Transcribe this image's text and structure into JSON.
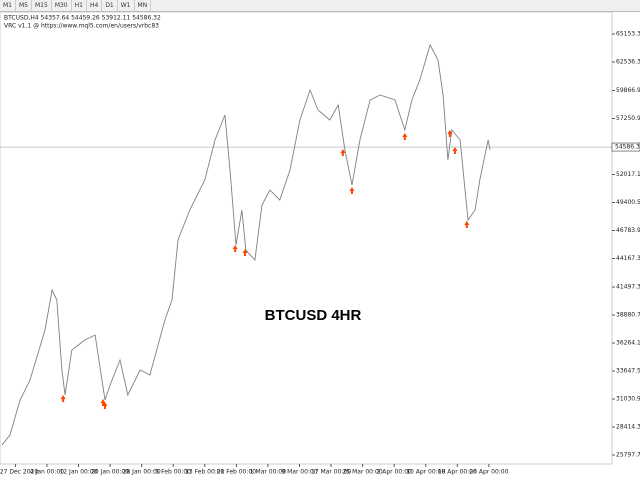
{
  "toolbar": {
    "tabs": [
      "M1",
      "M5",
      "M15",
      "M30",
      "H1",
      "H4",
      "D1",
      "W1",
      "MN"
    ]
  },
  "chart_data": {
    "type": "line",
    "info": "BTCUSD,H4  54357.64 54459.26 53912.11 54586.32",
    "indicator": "VRC v1.1 @ https://www.mql5.com/en/users/vrbc83",
    "annotation": "BTCUSD 4HR",
    "current_price": 54586.32,
    "xlim": [
      -3.9,
      151.2
    ],
    "ylim": [
      25143,
      67023
    ],
    "xticks": [
      {
        "value": 0,
        "label": "27 Dec 2020"
      },
      {
        "value": 8,
        "label": "4 Jan 00:00"
      },
      {
        "value": 16,
        "label": "12 Jan 00:00"
      },
      {
        "value": 24,
        "label": "20 Jan 00:00"
      },
      {
        "value": 32,
        "label": "28 Jan 00:00"
      },
      {
        "value": 40,
        "label": "5 Feb 00:00"
      },
      {
        "value": 48,
        "label": "13 Feb 00:00"
      },
      {
        "value": 56,
        "label": "21 Feb 00:00"
      },
      {
        "value": 64,
        "label": "1 Mar 00:00"
      },
      {
        "value": 72,
        "label": "9 Mar 00:00"
      },
      {
        "value": 80,
        "label": "17 Mar 00:00"
      },
      {
        "value": 88,
        "label": "25 Mar 00:00"
      },
      {
        "value": 96,
        "label": "2 Apr 00:00"
      },
      {
        "value": 104,
        "label": "10 Apr 00:00"
      },
      {
        "value": 112,
        "label": "18 Apr 00:00"
      },
      {
        "value": 120,
        "label": "26 Apr 00:00"
      }
    ],
    "yticks": [
      {
        "value": 65153.3,
        "label": "65153.30"
      },
      {
        "value": 62536.3,
        "label": "62536.30"
      },
      {
        "value": 59866.9,
        "label": "59866.90"
      },
      {
        "value": 57250.9,
        "label": "57250.90"
      },
      {
        "value": 52017.1,
        "label": "52017.10"
      },
      {
        "value": 49400.5,
        "label": "49400.50"
      },
      {
        "value": 46783.9,
        "label": "46783.90"
      },
      {
        "value": 44167.3,
        "label": "44167.30"
      },
      {
        "value": 41497.3,
        "label": "41497.30"
      },
      {
        "value": 38880.7,
        "label": "38880.70"
      },
      {
        "value": 36264.1,
        "label": "36264.10"
      },
      {
        "value": 33647.5,
        "label": "33647.50"
      },
      {
        "value": 31030.9,
        "label": "31030.90"
      },
      {
        "value": 28414.3,
        "label": "28414.30"
      },
      {
        "value": 25797.7,
        "label": "25797.70"
      }
    ],
    "series": [
      {
        "name": "BTCUSD",
        "color": "#808080",
        "x": [
          -3.4,
          -1.4,
          1.2,
          3.7,
          7.5,
          9.3,
          10.5,
          11.8,
          12.6,
          14.3,
          17.6,
          20.2,
          22.7,
          24.0,
          26.5,
          28.5,
          31.6,
          34.1,
          37.9,
          39.7,
          41.2,
          44.2,
          48.0,
          50.6,
          53.1,
          54.4,
          55.9,
          57.4,
          58.4,
          60.7,
          62.5,
          64.5,
          67.0,
          69.6,
          72.1,
          74.7,
          76.7,
          79.7,
          81.8,
          83.5,
          85.3,
          87.3,
          89.9,
          92.4,
          96.2,
          98.7,
          100.5,
          102.5,
          105.1,
          107.1,
          108.4,
          109.6,
          110.6,
          112.7,
          114.7,
          116.5,
          117.7,
          119.8,
          120.3
        ],
        "values": [
          26733,
          27668,
          30939,
          32809,
          37483,
          41222,
          40287,
          33744,
          31407,
          35613,
          36548,
          37016,
          30939,
          32341,
          34678,
          31407,
          33744,
          33276,
          38418,
          40287,
          45896,
          48700,
          51505,
          55244,
          57581,
          52440,
          45429,
          48700,
          44961,
          44026,
          49168,
          50570,
          49635,
          52440,
          57114,
          59918,
          58049,
          57114,
          58516,
          54309,
          51038,
          55244,
          58984,
          59451,
          58984,
          56179,
          58984,
          60853,
          64125,
          62722,
          59451,
          53375,
          56179,
          55244,
          47766,
          48700,
          51505,
          55244,
          54309
        ]
      },
      {
        "name": "Signals",
        "color": "#ff4500",
        "x": [
          12.1,
          22.2,
          22.7,
          55.7,
          58.2,
          83.0,
          85.3,
          98.7,
          110.1,
          111.4,
          114.4
        ],
        "values": [
          31126,
          30752,
          30472,
          45148,
          44774,
          54122,
          50570,
          55618,
          55899,
          54309,
          47392
        ]
      }
    ]
  }
}
